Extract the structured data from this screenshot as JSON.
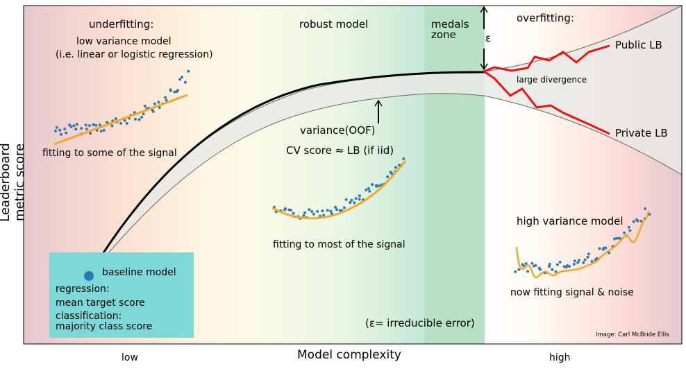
{
  "axes": {
    "y_label": "Leaderboard metric score",
    "x_label": "Model complexity",
    "x_low": "low",
    "x_high": "high"
  },
  "regions": {
    "underfitting": "underfitting:",
    "robust": "robust model",
    "medals_line1": "medals",
    "medals_line2": "zone",
    "overfitting": "overfitting:"
  },
  "annotations": {
    "low_variance_line1": "low variance model",
    "low_variance_line2": "(i.e. linear or logistic regression)",
    "fitting_some": "fitting to some of the signal",
    "variance_oof": "variance(OOF)",
    "cv_score": "CV score ≈ LB (if iid)",
    "fitting_most": "fitting to most of the signal",
    "epsilon": "ε",
    "irreducible_error": "(ε= irreducible error)",
    "high_variance": "high variance model",
    "fitting_noise": "now fitting signal & noise",
    "public_lb": "Public LB",
    "private_lb": "Private LB",
    "large_divergence": "large divergence",
    "credit": "Image: Carl McBride Ellis"
  },
  "baseline_box": {
    "title": "baseline model",
    "line1": "regression:",
    "line2": "mean target score",
    "line3": "classification:",
    "line4": "majority class score"
  },
  "colors": {
    "underfit_red": "#e8c6cc",
    "robust_yellow": "#fbfbe6",
    "medals_green": "#b8e0c5",
    "overfit_red": "#fbd8d8",
    "baseline_box": "#7fd8d8",
    "fit_line": "#f5a623",
    "points": "#2e7bb4",
    "lb_lines": "#ee1111"
  }
}
